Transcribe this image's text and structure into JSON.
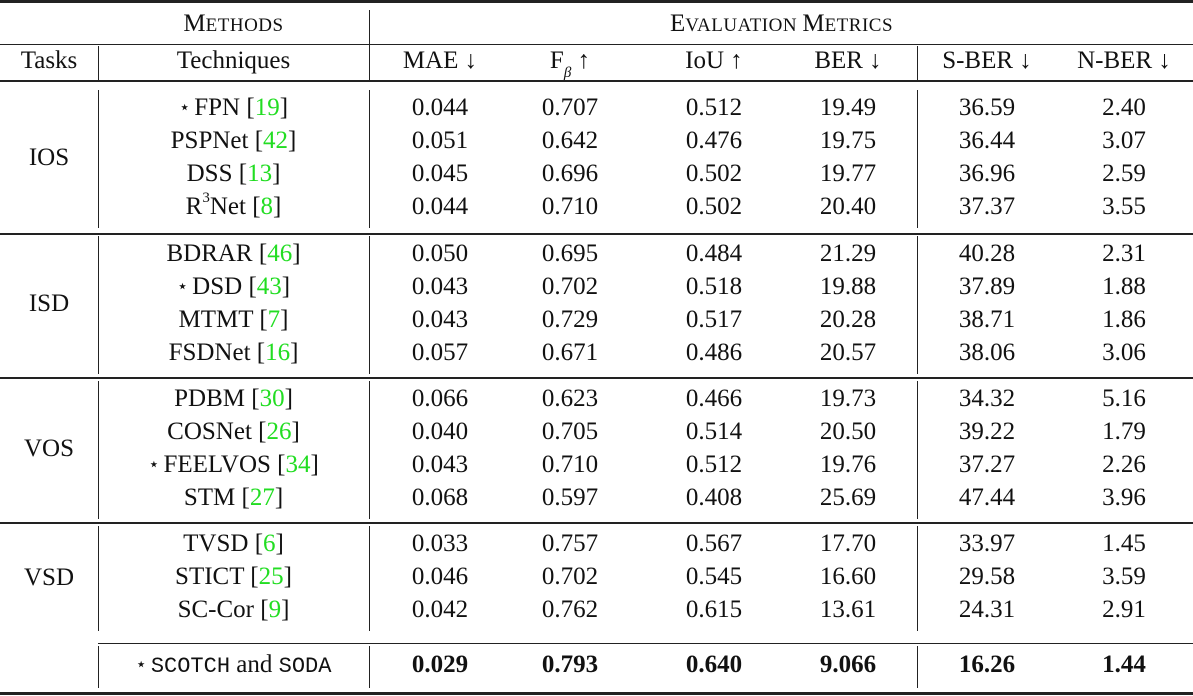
{
  "header": {
    "methods_group": "Methods",
    "metrics_group": "Evaluation Metrics",
    "columns": {
      "tasks": "Tasks",
      "techniques": "Techniques",
      "mae": "MAE ↓",
      "fbeta_base": "F",
      "fbeta_sub": "β",
      "fbeta_arrow": " ↑",
      "iou": "IoU ↑",
      "ber": "BER ↓",
      "sber": "S-BER ↓",
      "nber": "N-BER ↓"
    }
  },
  "groups": [
    {
      "task": "IOS",
      "rows": [
        {
          "star": true,
          "name": "FPN",
          "cite": "19",
          "mae": "0.044",
          "fbeta": "0.707",
          "iou": "0.512",
          "ber": "19.49",
          "sber": "36.59",
          "nber": "2.40"
        },
        {
          "star": false,
          "name": "PSPNet",
          "cite": "42",
          "mae": "0.051",
          "fbeta": "0.642",
          "iou": "0.476",
          "ber": "19.75",
          "sber": "36.44",
          "nber": "3.07"
        },
        {
          "star": false,
          "name": "DSS",
          "cite": "13",
          "mae": "0.045",
          "fbeta": "0.696",
          "iou": "0.502",
          "ber": "19.77",
          "sber": "36.96",
          "nber": "2.59"
        },
        {
          "star": false,
          "name": "R",
          "sup": "3",
          "name_rest": "Net",
          "cite": "8",
          "mae": "0.044",
          "fbeta": "0.710",
          "iou": "0.502",
          "ber": "20.40",
          "sber": "37.37",
          "nber": "3.55"
        }
      ]
    },
    {
      "task": "ISD",
      "rows": [
        {
          "star": false,
          "name": "BDRAR",
          "cite": "46",
          "mae": "0.050",
          "fbeta": "0.695",
          "iou": "0.484",
          "ber": "21.29",
          "sber": "40.28",
          "nber": "2.31"
        },
        {
          "star": true,
          "name": "DSD",
          "cite": "43",
          "mae": "0.043",
          "fbeta": "0.702",
          "iou": "0.518",
          "ber": "19.88",
          "sber": "37.89",
          "nber": "1.88"
        },
        {
          "star": false,
          "name": "MTMT",
          "cite": "7",
          "mae": "0.043",
          "fbeta": "0.729",
          "iou": "0.517",
          "ber": "20.28",
          "sber": "38.71",
          "nber": "1.86"
        },
        {
          "star": false,
          "name": "FSDNet",
          "cite": "16",
          "mae": "0.057",
          "fbeta": "0.671",
          "iou": "0.486",
          "ber": "20.57",
          "sber": "38.06",
          "nber": "3.06"
        }
      ]
    },
    {
      "task": "VOS",
      "rows": [
        {
          "star": false,
          "name": "PDBM",
          "cite": "30",
          "mae": "0.066",
          "fbeta": "0.623",
          "iou": "0.466",
          "ber": "19.73",
          "sber": "34.32",
          "nber": "5.16"
        },
        {
          "star": false,
          "name": "COSNet",
          "cite": "26",
          "mae": "0.040",
          "fbeta": "0.705",
          "iou": "0.514",
          "ber": "20.50",
          "sber": "39.22",
          "nber": "1.79"
        },
        {
          "star": true,
          "name": "FEELVOS",
          "cite": "34",
          "mae": "0.043",
          "fbeta": "0.710",
          "iou": "0.512",
          "ber": "19.76",
          "sber": "37.27",
          "nber": "2.26"
        },
        {
          "star": false,
          "name": "STM",
          "cite": "27",
          "mae": "0.068",
          "fbeta": "0.597",
          "iou": "0.408",
          "ber": "25.69",
          "sber": "47.44",
          "nber": "3.96"
        }
      ]
    },
    {
      "task": "VSD",
      "rows": [
        {
          "star": false,
          "name": "TVSD",
          "cite": "6",
          "mae": "0.033",
          "fbeta": "0.757",
          "iou": "0.567",
          "ber": "17.70",
          "sber": "33.97",
          "nber": "1.45"
        },
        {
          "star": false,
          "name": "STICT",
          "cite": "25",
          "mae": "0.046",
          "fbeta": "0.702",
          "iou": "0.545",
          "ber": "16.60",
          "sber": "29.58",
          "nber": "3.59"
        },
        {
          "star": false,
          "name": "SC-Cor",
          "cite": "9",
          "mae": "0.042",
          "fbeta": "0.762",
          "iou": "0.615",
          "ber": "13.61",
          "sber": "24.31",
          "nber": "2.91"
        }
      ]
    }
  ],
  "ours": {
    "star": "⋆",
    "name_a": "SCOTCH",
    "and": " and ",
    "name_b": "SODA",
    "mae": "0.029",
    "fbeta": "0.793",
    "iou": "0.640",
    "ber": "9.066",
    "sber": "16.26",
    "nber": "1.44"
  },
  "symbols": {
    "star": "⋆",
    "open_bracket": "[",
    "close_bracket": "]"
  },
  "colors": {
    "citation": "#22dd22",
    "text": "#111111",
    "rules": "#222222"
  }
}
